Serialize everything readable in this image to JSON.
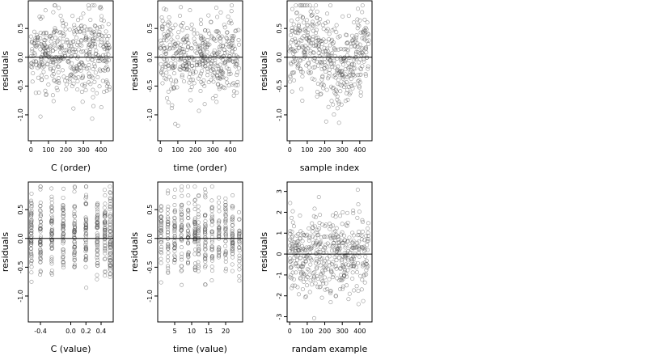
{
  "chart_data": [
    {
      "type": "scatter",
      "xlabel": "C (order)",
      "ylabel": "residuals",
      "xlim": [
        -15,
        470
      ],
      "ylim": [
        -1.45,
        0.98
      ],
      "xticks": [
        0,
        100,
        200,
        300,
        400
      ],
      "yticks": [
        -1.0,
        -0.5,
        0.0,
        0.5
      ],
      "ytick_labels": [
        "-1.0",
        "-0.5",
        "0.0",
        "0.5"
      ],
      "hline": 0,
      "n": 450,
      "pattern": "uniform-x",
      "y_center": 0.05,
      "y_spread": 0.35,
      "y_min": -1.35,
      "y_max": 0.9
    },
    {
      "type": "scatter",
      "xlabel": "time (order)",
      "ylabel": "residuals",
      "xlim": [
        -15,
        470
      ],
      "ylim": [
        -1.45,
        0.98
      ],
      "xticks": [
        0,
        100,
        200,
        300,
        400
      ],
      "yticks": [
        -1.0,
        -0.5,
        0.0,
        0.5
      ],
      "ytick_labels": [
        "-1.0",
        "-0.5",
        "0.0",
        "0.5"
      ],
      "hline": 0,
      "n": 450,
      "pattern": "uniform-x",
      "y_center": 0.05,
      "y_spread": 0.35,
      "y_min": -1.35,
      "y_max": 0.9
    },
    {
      "type": "scatter",
      "xlabel": "sample index",
      "ylabel": "residuals",
      "xlim": [
        -15,
        470
      ],
      "ylim": [
        -1.45,
        0.98
      ],
      "xticks": [
        0,
        100,
        200,
        300,
        400
      ],
      "yticks": [
        -1.0,
        -0.5,
        0.0,
        0.5
      ],
      "ytick_labels": [
        "-1.0",
        "-0.5",
        "0.0",
        "0.5"
      ],
      "hline": 0,
      "n": 450,
      "pattern": "clustered-x",
      "y_center": 0.05,
      "y_spread": 0.35,
      "y_min": -1.35,
      "y_max": 0.9
    },
    {
      "type": "scatter",
      "xlabel": "C (value)",
      "ylabel": "residuals",
      "xlim": [
        -0.56,
        0.56
      ],
      "ylim": [
        -1.45,
        0.98
      ],
      "xticks": [
        -0.4,
        0.0,
        0.2,
        0.4
      ],
      "xtick_labels": [
        "-0.4",
        "0.0",
        "0.2",
        "0.4"
      ],
      "yticks": [
        -1.0,
        -0.5,
        0.0,
        0.5
      ],
      "ytick_labels": [
        "-1.0",
        "-0.5",
        "0.0",
        "0.5"
      ],
      "hline": 0,
      "n": 450,
      "pattern": "discrete-x",
      "x_levels": [
        -0.52,
        -0.4,
        -0.25,
        -0.1,
        0.05,
        0.2,
        0.35,
        0.45,
        0.52
      ],
      "y_center": 0.05,
      "y_spread": 0.35,
      "y_min": -1.35,
      "y_max": 0.9
    },
    {
      "type": "scatter",
      "xlabel": "time (value)",
      "ylabel": "residuals",
      "xlim": [
        0,
        25
      ],
      "ylim": [
        -1.45,
        0.98
      ],
      "xticks": [
        5,
        10,
        15,
        20
      ],
      "yticks": [
        -1.0,
        -0.5,
        0.0,
        0.5
      ],
      "ytick_labels": [
        "-1.0",
        "-0.5",
        "0.0",
        "0.5"
      ],
      "hline": 0,
      "n": 450,
      "pattern": "discrete-x",
      "x_levels": [
        1,
        3,
        5,
        7,
        9,
        11,
        12,
        14,
        16,
        18,
        20,
        22,
        24
      ],
      "y_center": 0.05,
      "y_spread": 0.35,
      "y_min": -1.35,
      "y_max": 0.9
    },
    {
      "type": "scatter",
      "xlabel": "randam example",
      "ylabel": "residuals",
      "xlim": [
        -15,
        470
      ],
      "ylim": [
        -3.25,
        3.45
      ],
      "xticks": [
        0,
        100,
        200,
        300,
        400
      ],
      "yticks": [
        -3,
        -2,
        -1,
        0,
        1,
        2,
        3
      ],
      "ytick_labels": [
        "-3",
        "-2",
        "-1",
        "0",
        "1",
        "2",
        "3"
      ],
      "hline": 0,
      "n": 450,
      "pattern": "uniform-x",
      "y_center": 0.0,
      "y_spread": 1.0,
      "y_min": -3.1,
      "y_max": 3.2
    }
  ]
}
